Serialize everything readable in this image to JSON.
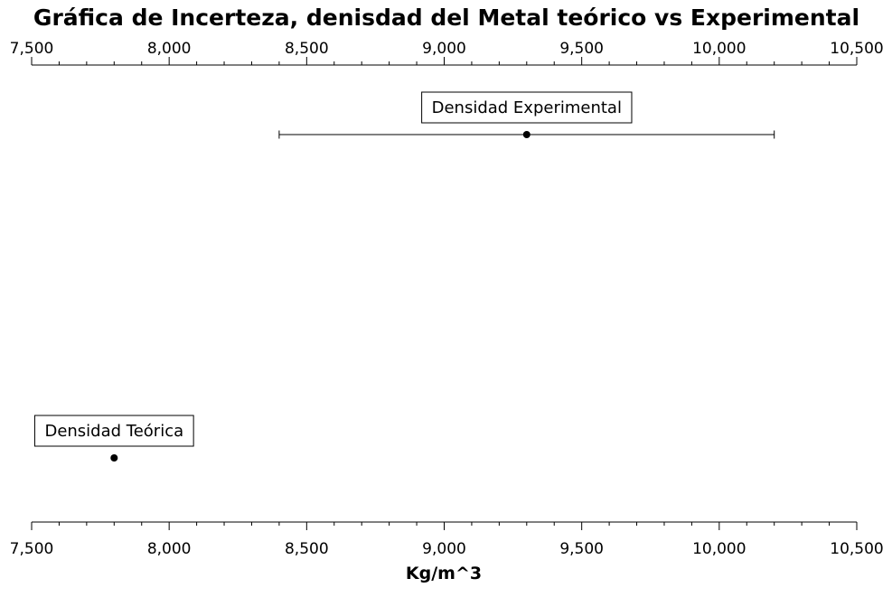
{
  "chart_data": {
    "type": "scatter",
    "title": "Gráfica de Incerteza, denisdad del Metal teórico vs Experimental",
    "xlabel": "Kg/m^3",
    "ylabel": "",
    "xlim": [
      7500,
      10500
    ],
    "x_ticks": [
      7500,
      8000,
      8500,
      9000,
      9500,
      10000,
      10500
    ],
    "x_tick_labels": [
      "7,500",
      "8,000",
      "8,500",
      "9,000",
      "9,500",
      "10,000",
      "10,500"
    ],
    "x_minor_step": 100,
    "grid": false,
    "axes": [
      "top",
      "bottom"
    ],
    "points": [
      {
        "label": "Densidad Experimental",
        "value": 9300,
        "error_min": 8400,
        "error_max": 10200
      },
      {
        "label": "Densidad Teórica",
        "value": 7800
      }
    ],
    "colors": {
      "marker": "#000000",
      "line": "#000000",
      "background": "#ffffff"
    }
  }
}
